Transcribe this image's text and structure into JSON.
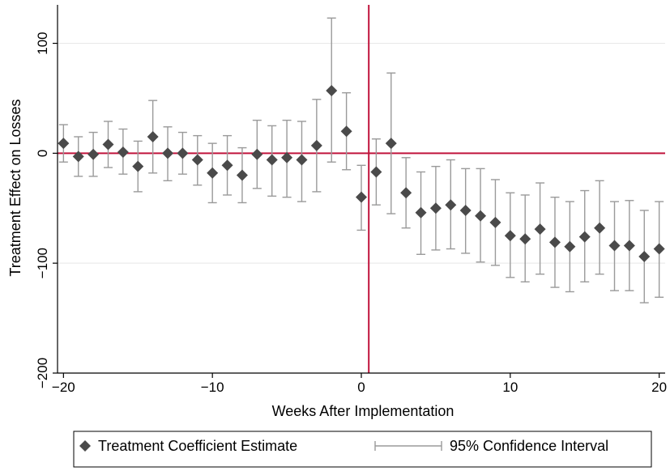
{
  "chart_data": {
    "type": "scatter",
    "xlabel": "Weeks After Implementation",
    "ylabel": "Treatment Effect on Losses",
    "xlim": [
      -20.4,
      20.4
    ],
    "ylim": [
      -200,
      135
    ],
    "x_ticks": [
      -20,
      -10,
      0,
      10,
      20
    ],
    "x_tick_labels": [
      "−20",
      "−10",
      "0",
      "10",
      "20"
    ],
    "y_ticks": [
      100,
      0,
      -100,
      -200
    ],
    "y_tick_labels": [
      "100",
      "0",
      "−100",
      "−200"
    ],
    "grid": "horizontal",
    "reference_lines": [
      {
        "axis": "y",
        "value": 0
      },
      {
        "axis": "x",
        "value": 0.5
      }
    ],
    "colors": {
      "marker": "#4a4a4a",
      "ci": "#9a9a9a",
      "reference": "#c0143c",
      "grid": "#e8e8e8"
    },
    "legend": {
      "position": "bottom",
      "entries": [
        "Treatment Coefficient Estimate",
        "95% Confidence Interval"
      ]
    },
    "series": [
      {
        "name": "Treatment Coefficient Estimate",
        "x": [
          -20,
          -19,
          -18,
          -17,
          -16,
          -15,
          -14,
          -13,
          -12,
          -11,
          -10,
          -9,
          -8,
          -7,
          -6,
          -5,
          -4,
          -3,
          -2,
          -1,
          0,
          1,
          2,
          3,
          4,
          5,
          6,
          7,
          8,
          9,
          10,
          11,
          12,
          13,
          14,
          15,
          16,
          17,
          18,
          19,
          20
        ],
        "y": [
          9,
          -3,
          -1,
          8,
          1,
          -12,
          15,
          0,
          0,
          -6,
          -18,
          -11,
          -20,
          -1,
          -6,
          -4,
          -6,
          7,
          57,
          20,
          -40,
          -17,
          9,
          -36,
          -54,
          -50,
          -47,
          -52,
          -57,
          -63,
          -75,
          -78,
          -69,
          -81,
          -85,
          -76,
          -68,
          -84,
          -84,
          -94,
          -87
        ]
      },
      {
        "name": "95% Confidence Interval",
        "x": [
          -20,
          -19,
          -18,
          -17,
          -16,
          -15,
          -14,
          -13,
          -12,
          -11,
          -10,
          -9,
          -8,
          -7,
          -6,
          -5,
          -4,
          -3,
          -2,
          -1,
          0,
          1,
          2,
          3,
          4,
          5,
          6,
          7,
          8,
          9,
          10,
          11,
          12,
          13,
          14,
          15,
          16,
          17,
          18,
          19,
          20
        ],
        "lower": [
          -8,
          -21,
          -21,
          -13,
          -19,
          -35,
          -18,
          -25,
          -19,
          -29,
          -45,
          -38,
          -45,
          -32,
          -39,
          -40,
          -44,
          -35,
          -8,
          -15,
          -70,
          -47,
          -55,
          -68,
          -92,
          -88,
          -87,
          -91,
          -99,
          -102,
          -113,
          -117,
          -110,
          -122,
          -126,
          -117,
          -110,
          -125,
          -125,
          -136,
          -131
        ],
        "upper": [
          26,
          15,
          19,
          29,
          22,
          11,
          48,
          24,
          19,
          16,
          9,
          16,
          5,
          30,
          25,
          30,
          29,
          49,
          123,
          55,
          -11,
          13,
          73,
          -4,
          -17,
          -12,
          -6,
          -14,
          -14,
          -24,
          -36,
          -38,
          -27,
          -40,
          -44,
          -34,
          -25,
          -44,
          -43,
          -52,
          -44
        ]
      }
    ]
  }
}
